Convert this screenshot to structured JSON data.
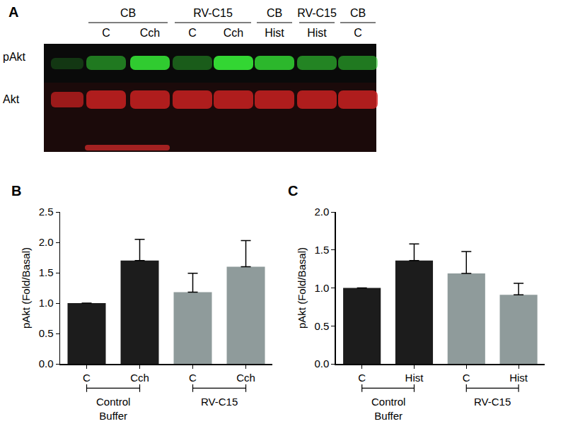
{
  "blot": {
    "label": "A",
    "rows": [
      "pAkt",
      "Akt"
    ],
    "groups": [
      {
        "name": "CB",
        "lanes": [
          "C",
          "Cch"
        ]
      },
      {
        "name": "RV-C15",
        "lanes": [
          "C",
          "Cch"
        ]
      },
      {
        "name": "CB",
        "lanes": [
          "Hist"
        ]
      },
      {
        "name": "RV-C15",
        "lanes": [
          "Hist"
        ]
      },
      {
        "name": "CB",
        "lanes": [
          "C"
        ]
      }
    ]
  },
  "chart_data": [
    {
      "type": "bar",
      "title": "B",
      "ylabel": "pAkt (Fold/Basal)",
      "categories": [
        "C",
        "Cch",
        "C",
        "Cch"
      ],
      "values": [
        1.0,
        1.7,
        1.18,
        1.6
      ],
      "errors": [
        null,
        0.35,
        0.31,
        0.43
      ],
      "colors": [
        "#1c1c1c",
        "#1c1c1c",
        "#8f9b9b",
        "#8f9b9b"
      ],
      "annotations": [
        "Control Buffer",
        "RV-C15"
      ],
      "ylim": [
        0,
        2.5
      ],
      "yticks": [
        {
          "value": 0,
          "label": "0.0"
        },
        0.5,
        {
          "value": 1,
          "label": "1.0"
        },
        1.5,
        {
          "value": 2,
          "label": "2.0"
        },
        2.5
      ],
      "grid": false
    },
    {
      "type": "bar",
      "title": "C",
      "ylabel": "pAkt (Fold/Basal)",
      "categories": [
        "C",
        "Hist",
        "C",
        "Hist"
      ],
      "values": [
        1.0,
        1.36,
        1.19,
        0.91
      ],
      "errors": [
        null,
        0.22,
        0.29,
        0.15
      ],
      "colors": [
        "#1c1c1c",
        "#1c1c1c",
        "#8f9b9b",
        "#8f9b9b"
      ],
      "annotations": [
        "Control Buffer",
        "RV-C15"
      ],
      "ylim": [
        0,
        2.0
      ],
      "yticks": [
        {
          "value": 0,
          "label": "0.0"
        },
        0.5,
        {
          "value": 1,
          "label": "1.0"
        },
        1.5,
        {
          "value": 2,
          "label": "2.0"
        }
      ],
      "grid": false
    }
  ]
}
